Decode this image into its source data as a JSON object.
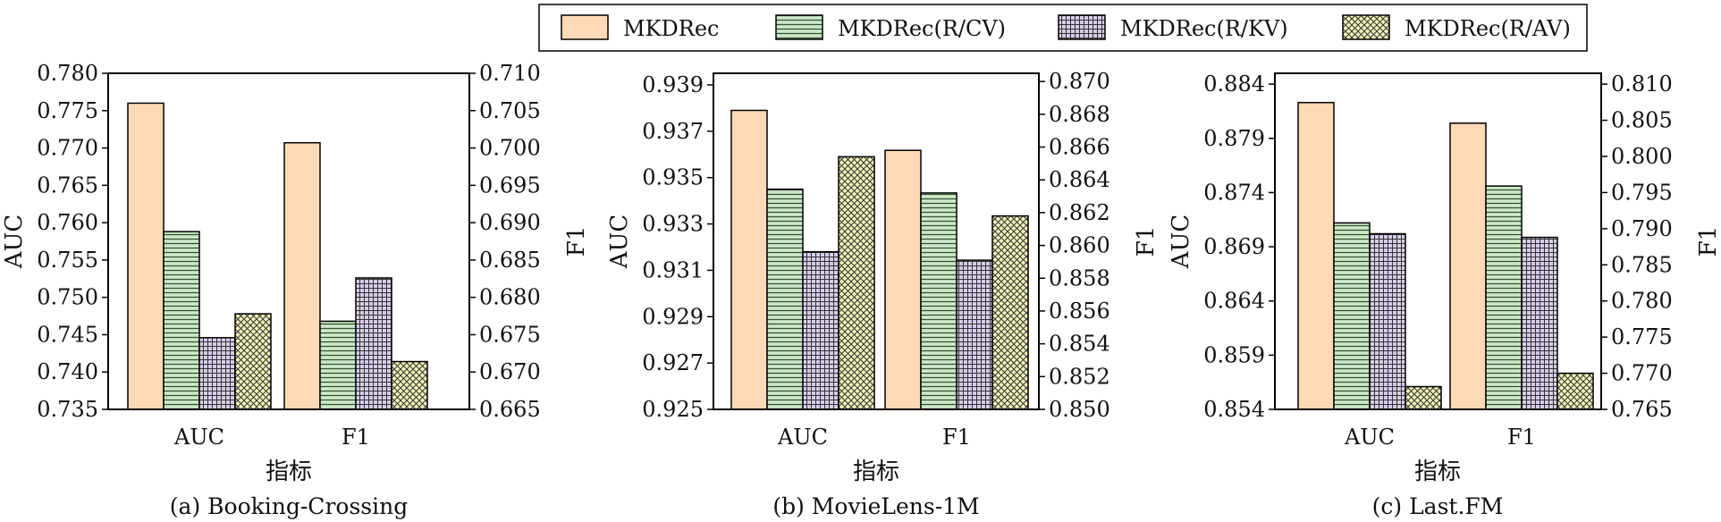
{
  "legend": {
    "position": "top",
    "items": [
      {
        "label": "MKDRec",
        "color": "#fdd9b5",
        "pattern": "solid"
      },
      {
        "label": "MKDRec(R/CV)",
        "color": "#cfe8cc",
        "pattern": "hlines"
      },
      {
        "label": "MKDRec(R/KV)",
        "color": "#d6cce8",
        "pattern": "grid"
      },
      {
        "label": "MKDRec(R/AV)",
        "color": "#f2f2b8",
        "pattern": "crosshatch"
      }
    ]
  },
  "chart_data": [
    {
      "type": "bar",
      "caption": "(a) Booking-Crossing",
      "xlabel": "指标",
      "ylabel_left": "AUC",
      "ylabel_right": "F1",
      "categories": [
        "AUC",
        "F1"
      ],
      "ylim_left": [
        0.735,
        0.78
      ],
      "yticks_left": [
        "0.735",
        "0.740",
        "0.745",
        "0.750",
        "0.755",
        "0.760",
        "0.765",
        "0.770",
        "0.775",
        "0.780"
      ],
      "ylim_right": [
        0.665,
        0.71
      ],
      "yticks_right": [
        "0.665",
        "0.670",
        "0.675",
        "0.680",
        "0.685",
        "0.690",
        "0.695",
        "0.700",
        "0.705",
        "0.710"
      ],
      "series": [
        {
          "name": "MKDRec",
          "values": [
            0.776,
            0.7007
          ]
        },
        {
          "name": "MKDRec(R/CV)",
          "values": [
            0.7588,
            0.6768
          ]
        },
        {
          "name": "MKDRec(R/KV)",
          "values": [
            0.7446,
            0.6826
          ]
        },
        {
          "name": "MKDRec(R/AV)",
          "values": [
            0.7478,
            0.6714
          ]
        }
      ]
    },
    {
      "type": "bar",
      "caption": "(b) MovieLens-1M",
      "xlabel": "指标",
      "ylabel_left": "AUC",
      "ylabel_right": "F1",
      "categories": [
        "AUC",
        "F1"
      ],
      "ylim_left": [
        0.925,
        0.9395
      ],
      "yticks_left": [
        "0.925",
        "0.927",
        "0.929",
        "0.931",
        "0.933",
        "0.935",
        "0.937",
        "0.939"
      ],
      "ylim_right": [
        0.85,
        0.8705
      ],
      "yticks_right": [
        "0.850",
        "0.852",
        "0.854",
        "0.856",
        "0.858",
        "0.860",
        "0.862",
        "0.864",
        "0.866",
        "0.868",
        "0.870"
      ],
      "series": [
        {
          "name": "MKDRec",
          "values": [
            0.9379,
            0.8658
          ]
        },
        {
          "name": "MKDRec(R/CV)",
          "values": [
            0.9345,
            0.8632
          ]
        },
        {
          "name": "MKDRec(R/KV)",
          "values": [
            0.9318,
            0.8591
          ]
        },
        {
          "name": "MKDRec(R/AV)",
          "values": [
            0.9359,
            0.8618
          ]
        }
      ]
    },
    {
      "type": "bar",
      "caption": "(c) Last.FM",
      "xlabel": "指标",
      "ylabel_left": "AUC",
      "ylabel_right": "F1",
      "categories": [
        "AUC",
        "F1"
      ],
      "ylim_left": [
        0.854,
        0.885
      ],
      "yticks_left": [
        "0.854",
        "0.859",
        "0.864",
        "0.869",
        "0.874",
        "0.879",
        "0.884"
      ],
      "ylim_right": [
        0.765,
        0.8115
      ],
      "yticks_right": [
        "0.765",
        "0.770",
        "0.775",
        "0.780",
        "0.785",
        "0.790",
        "0.795",
        "0.800",
        "0.805",
        "0.810"
      ],
      "series": [
        {
          "name": "MKDRec",
          "values": [
            0.8823,
            0.8046
          ]
        },
        {
          "name": "MKDRec(R/CV)",
          "values": [
            0.8712,
            0.7959
          ]
        },
        {
          "name": "MKDRec(R/KV)",
          "values": [
            0.8702,
            0.7888
          ]
        },
        {
          "name": "MKDRec(R/AV)",
          "values": [
            0.8561,
            0.77
          ]
        }
      ]
    }
  ]
}
